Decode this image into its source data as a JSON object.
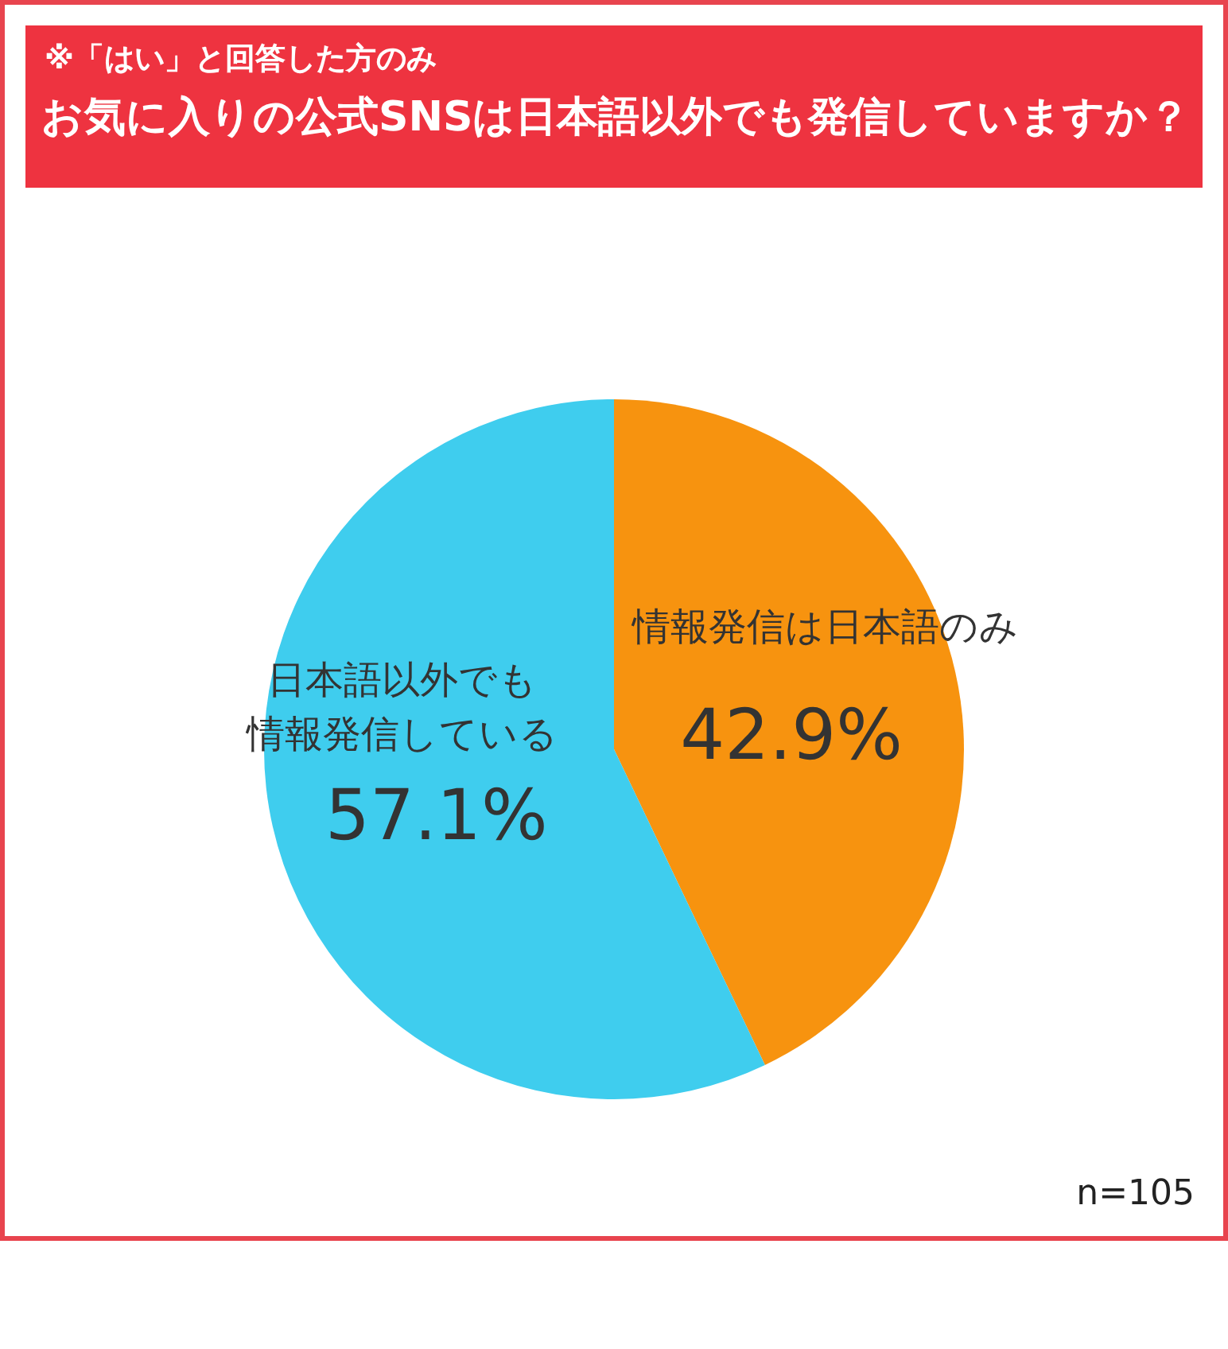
{
  "chart_data": {
    "type": "pie",
    "subtitle": "※「はい」と回答した方のみ",
    "title": "お気に入りの公式SNSは日本語以外でも発信していますか？",
    "categories": [
      "情報発信は日本語のみ",
      "日本語以外でも情報発信している"
    ],
    "values": [
      42.9,
      57.1
    ],
    "value_labels": [
      "42.9%",
      "57.1%"
    ],
    "colors": [
      "#f7930f",
      "#3fcdee"
    ],
    "legend": false,
    "annotations": [
      "n=105"
    ]
  }
}
